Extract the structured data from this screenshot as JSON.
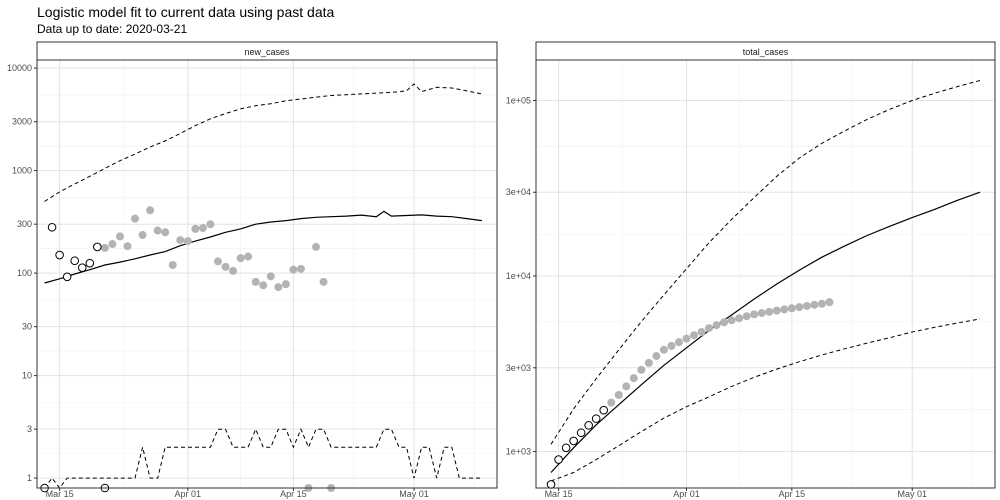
{
  "title": "Logistic model fit to current data using past data",
  "subtitle": "Data up to date: 2020-03-21",
  "chart_data": [
    {
      "type": "scatter",
      "strip_label": "new_cases",
      "y_scale": "log",
      "ylim": [
        0.8,
        12000
      ],
      "xlim": [
        "2020-03-12",
        "2020-05-12"
      ],
      "y_ticks": [
        1,
        3,
        10,
        30,
        100,
        300,
        1000,
        3000,
        10000
      ],
      "y_tick_labels": [
        "1",
        "3",
        "10",
        "30",
        "100",
        "300",
        "1000",
        "3000",
        "10000"
      ],
      "x_ticks": [
        "2020-03-15",
        "2020-04-01",
        "2020-04-15",
        "2020-05-01"
      ],
      "x_tick_labels": [
        "Mar 15",
        "Apr 01",
        "Apr 15",
        "May 01"
      ],
      "grid": true,
      "observed_past": {
        "x": [
          "2020-03-13",
          "2020-03-14",
          "2020-03-15",
          "2020-03-16",
          "2020-03-17",
          "2020-03-18",
          "2020-03-19",
          "2020-03-20",
          "2020-03-21"
        ],
        "y": [
          0.8,
          280,
          150,
          92,
          132,
          113,
          125,
          180,
          0.8
        ]
      },
      "observed_future": {
        "x": [
          "2020-03-21",
          "2020-03-22",
          "2020-03-23",
          "2020-03-24",
          "2020-03-25",
          "2020-03-26",
          "2020-03-27",
          "2020-03-28",
          "2020-03-29",
          "2020-03-30",
          "2020-03-31",
          "2020-04-01",
          "2020-04-02",
          "2020-04-03",
          "2020-04-04",
          "2020-04-05",
          "2020-04-06",
          "2020-04-07",
          "2020-04-08",
          "2020-04-09",
          "2020-04-10",
          "2020-04-11",
          "2020-04-12",
          "2020-04-13",
          "2020-04-14",
          "2020-04-15",
          "2020-04-16",
          "2020-04-17",
          "2020-04-18",
          "2020-04-19",
          "2020-04-20"
        ],
        "y": [
          176,
          192,
          228,
          183,
          340,
          235,
          410,
          260,
          250,
          120,
          210,
          205,
          270,
          275,
          300,
          130,
          115,
          105,
          140,
          145,
          82,
          76,
          93,
          73,
          78,
          108,
          110,
          0.8,
          180,
          82,
          0.8
        ]
      },
      "fit": {
        "x": [
          "2020-03-13",
          "2020-03-15",
          "2020-03-17",
          "2020-03-19",
          "2020-03-21",
          "2020-03-23",
          "2020-03-25",
          "2020-03-27",
          "2020-03-29",
          "2020-03-31",
          "2020-04-02",
          "2020-04-04",
          "2020-04-06",
          "2020-04-08",
          "2020-04-10",
          "2020-04-12",
          "2020-04-14",
          "2020-04-16",
          "2020-04-18",
          "2020-04-20",
          "2020-04-22",
          "2020-04-24",
          "2020-04-26",
          "2020-04-27",
          "2020-04-28",
          "2020-04-30",
          "2020-05-02",
          "2020-05-04",
          "2020-05-06",
          "2020-05-08",
          "2020-05-10"
        ],
        "y": [
          80,
          88,
          98,
          108,
          120,
          128,
          138,
          150,
          162,
          185,
          205,
          225,
          250,
          270,
          300,
          315,
          325,
          340,
          350,
          355,
          360,
          368,
          355,
          400,
          360,
          365,
          370,
          360,
          355,
          340,
          325
        ]
      },
      "upper": {
        "x": [
          "2020-03-13",
          "2020-03-15",
          "2020-03-17",
          "2020-03-19",
          "2020-03-21",
          "2020-03-23",
          "2020-03-25",
          "2020-03-27",
          "2020-03-29",
          "2020-03-31",
          "2020-04-02",
          "2020-04-04",
          "2020-04-06",
          "2020-04-08",
          "2020-04-10",
          "2020-04-12",
          "2020-04-14",
          "2020-04-16",
          "2020-04-18",
          "2020-04-20",
          "2020-04-22",
          "2020-04-24",
          "2020-04-26",
          "2020-04-28",
          "2020-04-30",
          "2020-05-01",
          "2020-05-02",
          "2020-05-04",
          "2020-05-06",
          "2020-05-08",
          "2020-05-10"
        ],
        "y": [
          500,
          620,
          740,
          880,
          1050,
          1250,
          1450,
          1700,
          1950,
          2300,
          2750,
          3200,
          3600,
          4000,
          4300,
          4500,
          4800,
          5000,
          5200,
          5400,
          5500,
          5600,
          5700,
          5800,
          6000,
          7000,
          5900,
          6500,
          6400,
          6000,
          5600
        ]
      },
      "lower": {
        "x": [
          "2020-03-13",
          "2020-03-14",
          "2020-03-15",
          "2020-03-16",
          "2020-03-19",
          "2020-03-22",
          "2020-03-25",
          "2020-03-26",
          "2020-03-27",
          "2020-03-28",
          "2020-03-29",
          "2020-04-01",
          "2020-04-04",
          "2020-04-05",
          "2020-04-06",
          "2020-04-07",
          "2020-04-08",
          "2020-04-09",
          "2020-04-10",
          "2020-04-11",
          "2020-04-12",
          "2020-04-13",
          "2020-04-14",
          "2020-04-15",
          "2020-04-16",
          "2020-04-17",
          "2020-04-18",
          "2020-04-19",
          "2020-04-20",
          "2020-04-21",
          "2020-04-22",
          "2020-04-23",
          "2020-04-24",
          "2020-04-25",
          "2020-04-26",
          "2020-04-27",
          "2020-04-28",
          "2020-04-29",
          "2020-04-30",
          "2020-05-01",
          "2020-05-02",
          "2020-05-03",
          "2020-05-04",
          "2020-05-05",
          "2020-05-06",
          "2020-05-07",
          "2020-05-08",
          "2020-05-10"
        ],
        "y": [
          0.8,
          1,
          0.8,
          1,
          1,
          1,
          1,
          2,
          1,
          1,
          2,
          2,
          2,
          3,
          3,
          2,
          2,
          2,
          3,
          2,
          2,
          3,
          3,
          2,
          3,
          2,
          3,
          3,
          2,
          2,
          2,
          2,
          2,
          2,
          2,
          3,
          3,
          2,
          2,
          1,
          2,
          2,
          1,
          2,
          2,
          1,
          1,
          1
        ]
      }
    },
    {
      "type": "scatter",
      "strip_label": "total_cases",
      "y_scale": "log",
      "ylim": [
        620,
        170000
      ],
      "xlim": [
        "2020-03-12",
        "2020-05-12"
      ],
      "y_ticks": [
        1000,
        3000,
        10000,
        30000,
        100000
      ],
      "y_tick_labels": [
        "1e+03",
        "3e+03",
        "1e+04",
        "3e+04",
        "1e+05"
      ],
      "x_ticks": [
        "2020-03-15",
        "2020-04-01",
        "2020-04-15",
        "2020-05-01"
      ],
      "x_tick_labels": [
        "Mar 15",
        "Apr 01",
        "Apr 15",
        "May 01"
      ],
      "grid": true,
      "observed_past": {
        "x": [
          "2020-03-14",
          "2020-03-15",
          "2020-03-16",
          "2020-03-17",
          "2020-03-18",
          "2020-03-19",
          "2020-03-20",
          "2020-03-21"
        ],
        "y": [
          650,
          900,
          1050,
          1150,
          1280,
          1410,
          1540,
          1720
        ]
      },
      "observed_future": {
        "x": [
          "2020-03-22",
          "2020-03-23",
          "2020-03-24",
          "2020-03-25",
          "2020-03-26",
          "2020-03-27",
          "2020-03-28",
          "2020-03-29",
          "2020-03-30",
          "2020-03-31",
          "2020-04-01",
          "2020-04-02",
          "2020-04-03",
          "2020-04-04",
          "2020-04-05",
          "2020-04-06",
          "2020-04-07",
          "2020-04-08",
          "2020-04-09",
          "2020-04-10",
          "2020-04-11",
          "2020-04-12",
          "2020-04-13",
          "2020-04-14",
          "2020-04-15",
          "2020-04-16",
          "2020-04-17",
          "2020-04-18",
          "2020-04-19",
          "2020-04-20"
        ],
        "y": [
          1900,
          2100,
          2350,
          2620,
          2920,
          3200,
          3500,
          3800,
          4000,
          4200,
          4400,
          4600,
          4800,
          5050,
          5250,
          5450,
          5600,
          5750,
          5900,
          6050,
          6150,
          6250,
          6350,
          6450,
          6550,
          6650,
          6750,
          6850,
          6950,
          7100
        ]
      },
      "fit": {
        "x": [
          "2020-03-14",
          "2020-03-17",
          "2020-03-20",
          "2020-03-23",
          "2020-03-26",
          "2020-03-29",
          "2020-04-01",
          "2020-04-04",
          "2020-04-07",
          "2020-04-10",
          "2020-04-13",
          "2020-04-16",
          "2020-04-19",
          "2020-04-22",
          "2020-04-25",
          "2020-04-28",
          "2020-05-01",
          "2020-05-04",
          "2020-05-07",
          "2020-05-10"
        ],
        "y": [
          760,
          1050,
          1420,
          1850,
          2400,
          3100,
          3900,
          4900,
          6000,
          7400,
          9000,
          10800,
          12800,
          14800,
          17000,
          19200,
          21500,
          24000,
          27000,
          30000
        ]
      },
      "upper": {
        "x": [
          "2020-03-14",
          "2020-03-17",
          "2020-03-20",
          "2020-03-23",
          "2020-03-26",
          "2020-03-29",
          "2020-04-01",
          "2020-04-04",
          "2020-04-07",
          "2020-04-10",
          "2020-04-13",
          "2020-04-16",
          "2020-04-19",
          "2020-04-22",
          "2020-04-25",
          "2020-04-28",
          "2020-05-01",
          "2020-05-04",
          "2020-05-07",
          "2020-05-10"
        ],
        "y": [
          1100,
          1750,
          2600,
          3800,
          5500,
          7800,
          11000,
          15500,
          21000,
          28000,
          37000,
          47000,
          57000,
          67000,
          78000,
          89000,
          100000,
          110000,
          120000,
          130000
        ]
      },
      "lower": {
        "x": [
          "2020-03-14",
          "2020-03-17",
          "2020-03-20",
          "2020-03-23",
          "2020-03-26",
          "2020-03-29",
          "2020-04-01",
          "2020-04-04",
          "2020-04-07",
          "2020-04-10",
          "2020-04-13",
          "2020-04-16",
          "2020-04-19",
          "2020-04-22",
          "2020-04-25",
          "2020-04-28",
          "2020-05-01",
          "2020-05-04",
          "2020-05-07",
          "2020-05-10"
        ],
        "y": [
          680,
          760,
          900,
          1080,
          1300,
          1550,
          1800,
          2050,
          2350,
          2650,
          2950,
          3250,
          3550,
          3850,
          4150,
          4450,
          4800,
          5100,
          5400,
          5700
        ]
      }
    }
  ]
}
